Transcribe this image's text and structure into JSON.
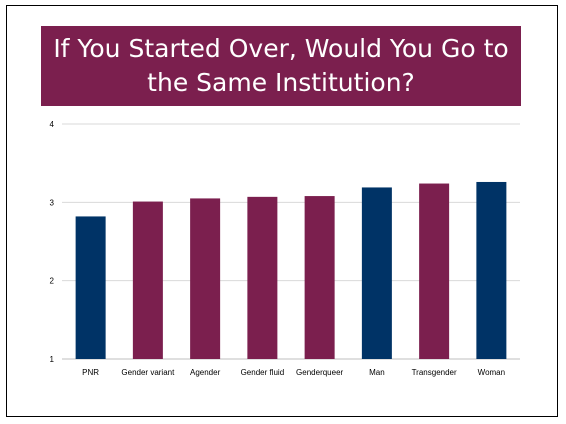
{
  "slide": {
    "title": "If You Started Over, Would You Go to the Same Institution?",
    "title_bg": "#7b1f4e"
  },
  "chart_data": {
    "type": "bar",
    "title": "",
    "xlabel": "",
    "ylabel": "",
    "ylim": [
      1,
      4
    ],
    "yticks": [
      1,
      2,
      3,
      4
    ],
    "grid": true,
    "legend": "none",
    "categories": [
      "PNR",
      "Gender variant",
      "Agender",
      "Gender fluid",
      "Genderqueer",
      "Man",
      "Transgender",
      "Woman"
    ],
    "values": [
      2.82,
      3.01,
      3.05,
      3.07,
      3.08,
      3.19,
      3.24,
      3.26
    ],
    "bar_colors": [
      "#003366",
      "#7b1f4e",
      "#7b1f4e",
      "#7b1f4e",
      "#7b1f4e",
      "#003366",
      "#7b1f4e",
      "#003366"
    ]
  }
}
